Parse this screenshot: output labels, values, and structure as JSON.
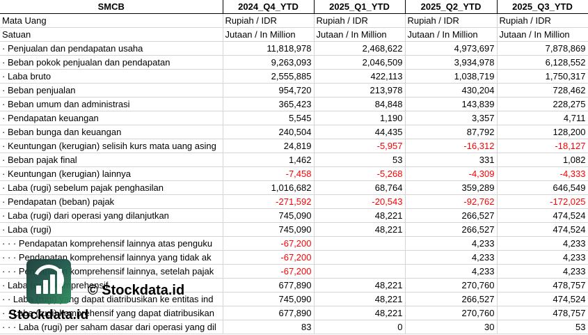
{
  "sheet": {
    "header": {
      "name": "SMCB",
      "periods": [
        "2024_Q4_YTD",
        "2025_Q1_YTD",
        "2025_Q2_YTD",
        "2025_Q3_YTD"
      ]
    },
    "meta_rows": [
      {
        "label": "Mata Uang",
        "values": [
          "Rupiah / IDR",
          "Rupiah / IDR",
          "Rupiah / IDR",
          "Rupiah / IDR"
        ]
      },
      {
        "label": "Satuan",
        "values": [
          "Jutaan / In Million",
          "Jutaan / In Million",
          "Jutaan / In Million",
          "Jutaan / In Million"
        ]
      }
    ],
    "rows": [
      {
        "label": "· Penjualan dan pendapatan usaha",
        "values": [
          "11,818,978",
          "2,468,622",
          "4,973,697",
          "7,878,869"
        ]
      },
      {
        "label": "· Beban pokok penjualan dan pendapatan",
        "values": [
          "9,263,093",
          "2,046,509",
          "3,934,978",
          "6,128,552"
        ]
      },
      {
        "label": "· Laba bruto",
        "values": [
          "2,555,885",
          "422,113",
          "1,038,719",
          "1,750,317"
        ]
      },
      {
        "label": "· Beban penjualan",
        "values": [
          "954,720",
          "213,978",
          "430,204",
          "728,462"
        ]
      },
      {
        "label": "· Beban umum dan administrasi",
        "values": [
          "365,423",
          "84,848",
          "143,839",
          "228,275"
        ]
      },
      {
        "label": "· Pendapatan keuangan",
        "values": [
          "5,545",
          "1,190",
          "3,357",
          "4,711"
        ]
      },
      {
        "label": "· Beban bunga dan keuangan",
        "values": [
          "240,504",
          "44,435",
          "87,792",
          "128,200"
        ]
      },
      {
        "label": "· Keuntungan (kerugian) selisih kurs mata uang asing",
        "values": [
          "24,819",
          "-5,957",
          "-16,312",
          "-18,127"
        ]
      },
      {
        "label": "· Beban pajak final",
        "values": [
          "1,462",
          "53",
          "331",
          "1,082"
        ]
      },
      {
        "label": "· Keuntungan (kerugian) lainnya",
        "values": [
          "-7,458",
          "-5,268",
          "-4,309",
          "-4,333"
        ]
      },
      {
        "label": "· Laba (rugi) sebelum pajak penghasilan",
        "values": [
          "1,016,682",
          "68,764",
          "359,289",
          "646,549"
        ]
      },
      {
        "label": "· Pendapatan (beban) pajak",
        "values": [
          "-271,592",
          "-20,543",
          "-92,762",
          "-172,025"
        ]
      },
      {
        "label": "· Laba (rugi) dari operasi yang dilanjutkan",
        "values": [
          "745,090",
          "48,221",
          "266,527",
          "474,524"
        ]
      },
      {
        "label": "· Laba (rugi)",
        "values": [
          "745,090",
          "48,221",
          "266,527",
          "474,524"
        ]
      },
      {
        "label": "· · · Pendapatan komprehensif lainnya atas penguku",
        "values": [
          "-67,200",
          "",
          "4,233",
          "4,233"
        ]
      },
      {
        "label": "· · · Pendapatan komprehensif lainnya yang tidak ak",
        "values": [
          "-67,200",
          "",
          "4,233",
          "4,233"
        ]
      },
      {
        "label": "· · · Pendapatan komprehensif lainnya, setelah pajak",
        "values": [
          "-67,200",
          "",
          "4,233",
          "4,233"
        ]
      },
      {
        "label": "· Laba (rugi) komprehensif",
        "values": [
          "677,890",
          "48,221",
          "270,760",
          "478,757"
        ]
      },
      {
        "label": "· · Laba (rugi) yang dapat diatribusikan ke entitas ind",
        "values": [
          "745,090",
          "48,221",
          "266,527",
          "474,524"
        ]
      },
      {
        "label": "· · Laba (rugi) komprehensif yang dapat diatribusikan",
        "values": [
          "677,890",
          "48,221",
          "270,760",
          "478,757"
        ]
      },
      {
        "label": "· · · Laba (rugi) per saham dasar dari operasi yang dil",
        "values": [
          "83",
          "0",
          "30",
          "53"
        ]
      }
    ]
  },
  "watermark": {
    "copyright": "© Stockdata.id",
    "brand": "Stockdata.id",
    "logo_icon": "stockdata-logo-icon",
    "logo_colors": [
      "#1a3b37",
      "#2d8f5c"
    ]
  },
  "colors": {
    "negative": "#ff0000",
    "grid": "#d4d4d4"
  }
}
